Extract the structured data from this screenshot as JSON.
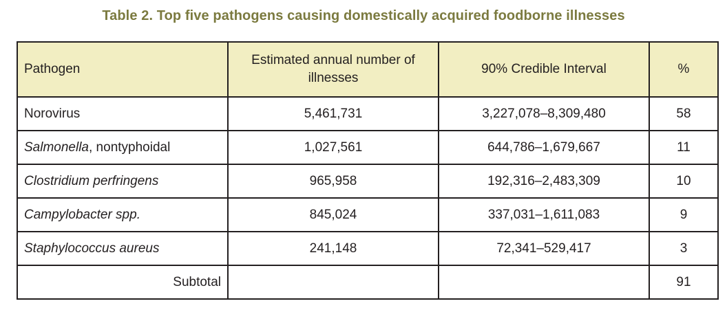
{
  "title": "Table 2.  Top five pathogens causing domestically acquired foodborne illnesses",
  "colors": {
    "title": "#7b7a3f",
    "header_bg": "#f2eec2",
    "border": "#231f20"
  },
  "columns": {
    "pathogen": "Pathogen",
    "annual": "Estimated annual number of illnesses",
    "interval": "90% Credible Interval",
    "percent": "%"
  },
  "rows": [
    {
      "pathogen_italic": "",
      "pathogen_rest": "Norovirus",
      "annual": "5,461,731",
      "interval": "3,227,078–8,309,480",
      "percent": "58"
    },
    {
      "pathogen_italic": "Salmonella",
      "pathogen_rest": ", nontyphoidal",
      "annual": "1,027,561",
      "interval": "644,786–1,679,667",
      "percent": "11"
    },
    {
      "pathogen_italic": "Clostridium perfringens",
      "pathogen_rest": "",
      "annual": "965,958",
      "interval": "192,316–2,483,309",
      "percent": "10"
    },
    {
      "pathogen_italic": "Campylobacter spp.",
      "pathogen_rest": "",
      "annual": "845,024",
      "interval": "337,031–1,611,083",
      "percent": "9"
    },
    {
      "pathogen_italic": "Staphylococcus aureus",
      "pathogen_rest": "",
      "annual": "241,148",
      "interval": "72,341–529,417",
      "percent": "3"
    }
  ],
  "subtotal": {
    "label": "Subtotal",
    "annual": "",
    "interval": "",
    "percent": "91"
  }
}
